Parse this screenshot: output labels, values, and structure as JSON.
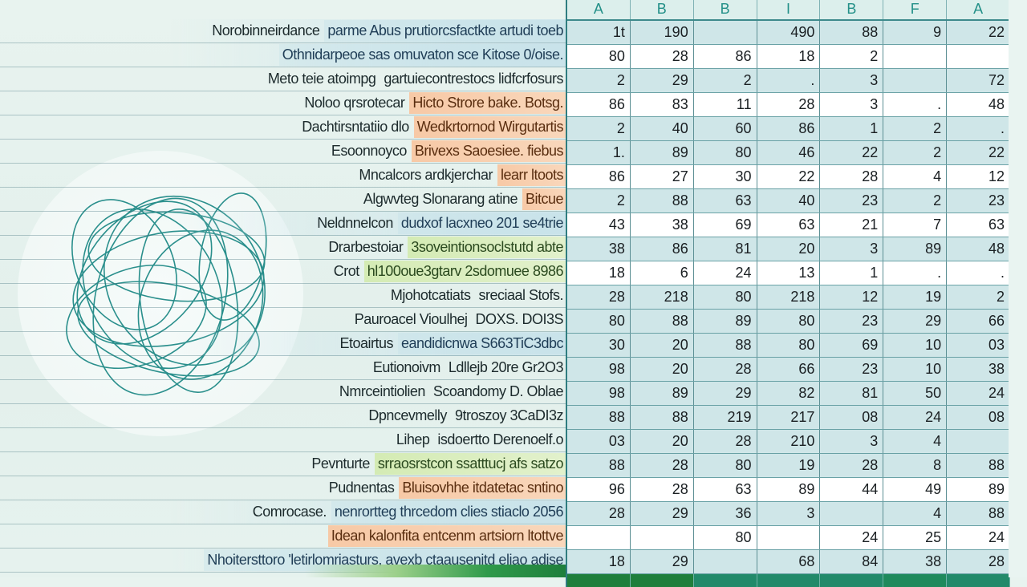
{
  "illustration": {
    "name": "tangled-lines-graphic"
  },
  "columns": [
    "A",
    "B",
    "B",
    "I",
    "B",
    "F",
    "A"
  ],
  "rows": [
    {
      "label_plain": "Norobinneirdance",
      "label_hl": "parme Abus prutiorcsfactkte artudi toeb",
      "hl": "blue",
      "shade": true,
      "values": [
        "1t",
        "190",
        "",
        "490",
        "88",
        "9",
        "22"
      ]
    },
    {
      "label_plain": "",
      "label_hl": "Othnidarpeoe sas omuvaton sce Kitose 0/oise.",
      "hl": "blue",
      "shade": false,
      "values": [
        "80",
        "28",
        "86",
        "18",
        "2",
        "",
        ""
      ]
    },
    {
      "label_plain": "Meto teie atoimpg",
      "label_hl": "gartuiecontrestocs lidfcrfosurs",
      "hl": "none",
      "shade": true,
      "values": [
        "2",
        "29",
        "2",
        ".",
        "3",
        "",
        "72"
      ]
    },
    {
      "label_plain": "Noloo qrsrotecar",
      "label_hl": "Hicto Strore bake. Botsg.",
      "hl": "orange",
      "shade": false,
      "values": [
        "86",
        "83",
        "11",
        "28",
        "3",
        ".",
        "48"
      ]
    },
    {
      "label_plain": "Dachtirsntatiio dlo",
      "label_hl": "Wedkrtornod Wirgutartis",
      "hl": "orange",
      "shade": true,
      "values": [
        "2",
        "40",
        "60",
        "86",
        "1",
        "2",
        "."
      ]
    },
    {
      "label_plain": "Esoonnoyco",
      "label_hl": "Brivexs Saoesiee. fiebus",
      "hl": "orange",
      "shade": true,
      "values": [
        "1.",
        "89",
        "80",
        "46",
        "22",
        "2",
        "22"
      ]
    },
    {
      "label_plain": "Mncalcors ardkjerchar",
      "label_hl": "learr ltoots",
      "hl": "orange",
      "shade": false,
      "values": [
        "86",
        "27",
        "30",
        "22",
        "28",
        "4",
        "12"
      ]
    },
    {
      "label_plain": "Algwvteg Slonarang atine",
      "label_hl": "Bitcue",
      "hl": "orange",
      "shade": true,
      "values": [
        "2",
        "88",
        "63",
        "40",
        "23",
        "2",
        "23"
      ]
    },
    {
      "label_plain": "Neldnnelcon",
      "label_hl": "dudxof lacxneo 201 se4trie",
      "hl": "blue",
      "shade": false,
      "values": [
        "43",
        "38",
        "69",
        "63",
        "21",
        "7",
        "63"
      ]
    },
    {
      "label_plain": "Drarbestoiar",
      "label_hl": "3soveintionsoclstutd abte",
      "hl": "green",
      "shade": true,
      "values": [
        "38",
        "86",
        "81",
        "20",
        "3",
        "89",
        "48"
      ]
    },
    {
      "label_plain": "Crot",
      "label_hl": "hl100oue3gtarv 2sdomuee 8986",
      "hl": "green",
      "shade": false,
      "values": [
        "18",
        "6",
        "24",
        "13",
        "1",
        ".",
        "."
      ]
    },
    {
      "label_plain": "Mjohotcatiats",
      "label_hl": "sreciaal Stofs.",
      "hl": "none",
      "shade": true,
      "values": [
        "28",
        "218",
        "80",
        "218",
        "12",
        "19",
        "2"
      ]
    },
    {
      "label_plain": "Pauroacel Vioulhej",
      "label_hl": "DOXS. DOI3S",
      "hl": "none",
      "shade": true,
      "values": [
        "80",
        "88",
        "89",
        "80",
        "23",
        "29",
        "66"
      ]
    },
    {
      "label_plain": "Etoairtus",
      "label_hl": "eandidicnwa S663TiC3dbc",
      "hl": "blue",
      "shade": true,
      "values": [
        "30",
        "20",
        "88",
        "80",
        "69",
        "10",
        "03"
      ]
    },
    {
      "label_plain": "Eutionoivm",
      "label_hl": "Ldllejb 20re Gr2O3",
      "hl": "none",
      "shade": true,
      "values": [
        "98",
        "20",
        "28",
        "66",
        "23",
        "10",
        "38"
      ]
    },
    {
      "label_plain": "Nmrceintiolien",
      "label_hl": "Scoandomy D. Oblae",
      "hl": "none",
      "shade": true,
      "values": [
        "98",
        "89",
        "29",
        "82",
        "81",
        "50",
        "24"
      ]
    },
    {
      "label_plain": "Dpncevmelly",
      "label_hl": "9troszoy 3CaDI3z",
      "hl": "none",
      "shade": true,
      "values": [
        "88",
        "88",
        "219",
        "217",
        "08",
        "24",
        "08"
      ]
    },
    {
      "label_plain": "Lihep",
      "label_hl": "isdoertto Derenoelf.o",
      "hl": "none",
      "shade": true,
      "values": [
        "03",
        "20",
        "28",
        "210",
        "3",
        "4",
        ""
      ]
    },
    {
      "label_plain": "Pevnturte",
      "label_hl": "srraosrstcon ssatttucj afs satzo",
      "hl": "green",
      "shade": true,
      "values": [
        "88",
        "28",
        "80",
        "19",
        "28",
        "8",
        "88"
      ]
    },
    {
      "label_plain": "Pudnentas",
      "label_hl": "Bluisovhhe itdatetac sntino",
      "hl": "orange",
      "shade": false,
      "values": [
        "96",
        "28",
        "63",
        "89",
        "44",
        "49",
        "89"
      ]
    },
    {
      "label_plain": "Comrocase.",
      "label_hl": "nenrortteg thrcedom clies stiaclo 2056",
      "hl": "blue",
      "shade": true,
      "values": [
        "28",
        "29",
        "36",
        "3",
        "",
        "4",
        "88"
      ]
    },
    {
      "label_plain": "",
      "label_hl": "Idean kalonfita entcenm artsiorn ltottve",
      "hl": "orange",
      "shade": false,
      "values": [
        "",
        "",
        "80",
        "",
        "24",
        "25",
        "24"
      ]
    },
    {
      "label_plain": "",
      "label_hl": "Nhoitersttoro 'letirlomriasturs, avexb ctaausenitd eliao adise",
      "hl": "blue",
      "shade": true,
      "values": [
        "18",
        "29",
        "",
        "68",
        "84",
        "38",
        "28"
      ]
    }
  ],
  "footer_colors": [
    "#1f7f3c",
    "#1f7f3c",
    "#228a6a",
    "#228a6a",
    "#228a6a",
    "#1f8a5c",
    "#228a6a"
  ]
}
